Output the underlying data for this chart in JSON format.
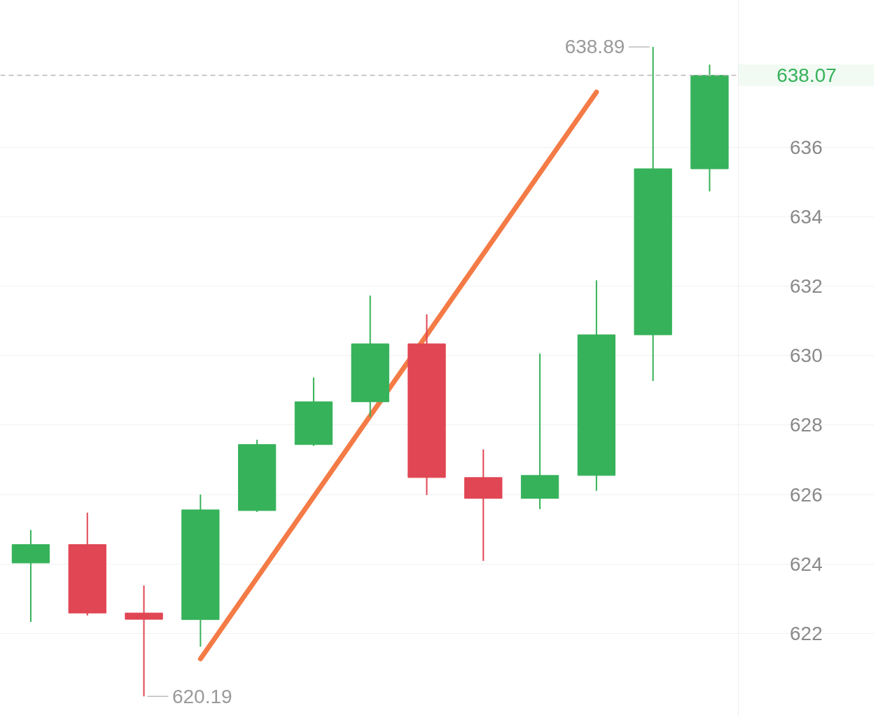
{
  "chart_data": {
    "type": "candlestick",
    "categories": [
      null,
      null,
      null,
      null,
      null,
      null,
      null,
      null,
      null,
      null,
      null,
      null,
      null
    ],
    "ohlc": [
      [
        624.03,
        624.98,
        622.33,
        624.56
      ],
      [
        624.56,
        625.48,
        622.52,
        622.59
      ],
      [
        622.59,
        623.38,
        620.19,
        622.41
      ],
      [
        622.4,
        626.0,
        621.62,
        625.56
      ],
      [
        625.54,
        627.58,
        625.5,
        627.44
      ],
      [
        627.44,
        629.37,
        627.4,
        628.67
      ],
      [
        628.67,
        631.73,
        628.24,
        630.34
      ],
      [
        630.34,
        631.19,
        625.99,
        626.49
      ],
      [
        626.49,
        627.3,
        624.09,
        625.89
      ],
      [
        625.89,
        630.06,
        625.58,
        626.55
      ],
      [
        626.55,
        632.17,
        626.11,
        630.6
      ],
      [
        630.6,
        638.89,
        629.27,
        635.38
      ],
      [
        635.38,
        638.38,
        634.73,
        638.07
      ]
    ],
    "colors": [
      "#36b25a",
      "#e04653",
      "#e04653",
      "#36b25a",
      "#36b25a",
      "#36b25a",
      "#36b25a",
      "#e04653",
      "#e04653",
      "#36b25a",
      "#36b25a",
      "#36b25a",
      "#36b25a"
    ],
    "series": [
      {
        "type": "line",
        "color": "#f47b46",
        "values": [
          null,
          null,
          null,
          621.27,
          null,
          null,
          null,
          null,
          null,
          null,
          637.59,
          null,
          null
        ]
      }
    ],
    "ylim": [
      619.62,
      640.23
    ],
    "yticks": [
      622,
      624,
      626,
      628,
      630,
      632,
      634,
      636
    ],
    "tick_labels": "y",
    "grid": "y",
    "ref_lines": [
      {
        "axis": "y",
        "value": 638.07,
        "label": "638.07",
        "color": "#b8b8b8",
        "line_style": "dashed"
      }
    ],
    "annotations": [
      "638.89",
      "620.19"
    ]
  }
}
